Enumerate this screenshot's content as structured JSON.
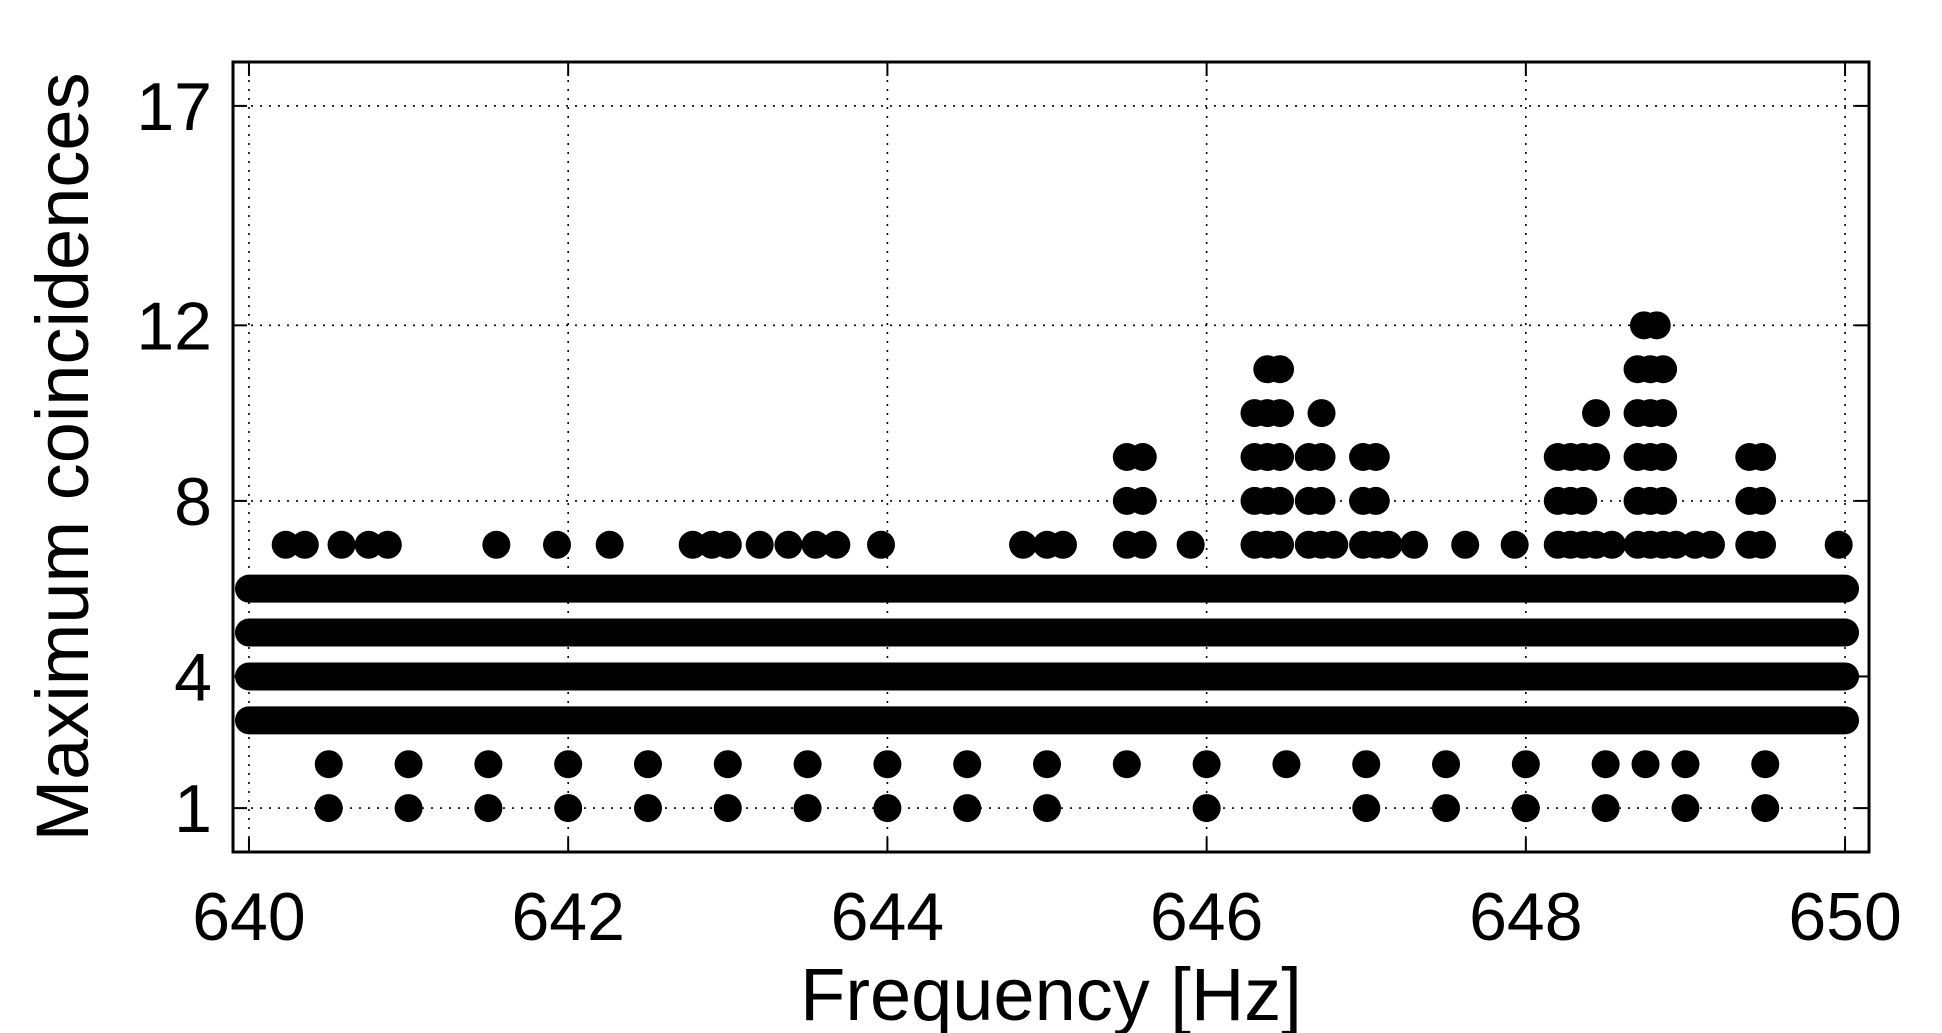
{
  "chart_data": {
    "type": "scatter",
    "title": "",
    "xlabel": "Frequency [Hz]",
    "ylabel": "Maximum coincidences",
    "xlim": [
      639.9,
      650.15
    ],
    "ylim": [
      0,
      18
    ],
    "x_ticks": [
      640,
      642,
      644,
      646,
      648,
      650
    ],
    "y_ticks": [
      1,
      4,
      8,
      12,
      17
    ],
    "grid": true,
    "marker_color": "#000000",
    "dense_bands": [
      {
        "y": 6,
        "x_from": 640.0,
        "x_to": 650.0
      },
      {
        "y": 5,
        "x_from": 640.0,
        "x_to": 650.0
      },
      {
        "y": 4,
        "x_from": 640.0,
        "x_to": 650.0
      },
      {
        "y": 3,
        "x_from": 640.0,
        "x_to": 650.0
      }
    ],
    "points": [
      {
        "x": 640.5,
        "y": 1
      },
      {
        "x": 641.0,
        "y": 1
      },
      {
        "x": 641.5,
        "y": 1
      },
      {
        "x": 642.0,
        "y": 1
      },
      {
        "x": 642.5,
        "y": 1
      },
      {
        "x": 643.0,
        "y": 1
      },
      {
        "x": 643.5,
        "y": 1
      },
      {
        "x": 644.0,
        "y": 1
      },
      {
        "x": 644.5,
        "y": 1
      },
      {
        "x": 645.0,
        "y": 1
      },
      {
        "x": 646.0,
        "y": 1
      },
      {
        "x": 647.0,
        "y": 1
      },
      {
        "x": 647.5,
        "y": 1
      },
      {
        "x": 648.0,
        "y": 1
      },
      {
        "x": 648.5,
        "y": 1
      },
      {
        "x": 649.0,
        "y": 1
      },
      {
        "x": 649.5,
        "y": 1
      },
      {
        "x": 640.5,
        "y": 2
      },
      {
        "x": 641.0,
        "y": 2
      },
      {
        "x": 641.5,
        "y": 2
      },
      {
        "x": 642.0,
        "y": 2
      },
      {
        "x": 642.5,
        "y": 2
      },
      {
        "x": 643.0,
        "y": 2
      },
      {
        "x": 643.5,
        "y": 2
      },
      {
        "x": 644.0,
        "y": 2
      },
      {
        "x": 644.5,
        "y": 2
      },
      {
        "x": 645.0,
        "y": 2
      },
      {
        "x": 645.5,
        "y": 2
      },
      {
        "x": 646.0,
        "y": 2
      },
      {
        "x": 646.5,
        "y": 2
      },
      {
        "x": 647.0,
        "y": 2
      },
      {
        "x": 647.5,
        "y": 2
      },
      {
        "x": 648.0,
        "y": 2
      },
      {
        "x": 648.5,
        "y": 2
      },
      {
        "x": 648.75,
        "y": 2
      },
      {
        "x": 649.0,
        "y": 2
      },
      {
        "x": 649.5,
        "y": 2
      },
      {
        "x": 640.23,
        "y": 7
      },
      {
        "x": 640.35,
        "y": 7
      },
      {
        "x": 640.58,
        "y": 7
      },
      {
        "x": 640.75,
        "y": 7
      },
      {
        "x": 640.87,
        "y": 7
      },
      {
        "x": 641.55,
        "y": 7
      },
      {
        "x": 641.93,
        "y": 7
      },
      {
        "x": 642.26,
        "y": 7
      },
      {
        "x": 642.78,
        "y": 7
      },
      {
        "x": 642.9,
        "y": 7
      },
      {
        "x": 643.0,
        "y": 7
      },
      {
        "x": 643.2,
        "y": 7
      },
      {
        "x": 643.38,
        "y": 7
      },
      {
        "x": 643.55,
        "y": 7
      },
      {
        "x": 643.68,
        "y": 7
      },
      {
        "x": 643.96,
        "y": 7
      },
      {
        "x": 644.85,
        "y": 7
      },
      {
        "x": 645.0,
        "y": 7
      },
      {
        "x": 645.1,
        "y": 7
      },
      {
        "x": 645.5,
        "y": 7
      },
      {
        "x": 645.6,
        "y": 7
      },
      {
        "x": 645.9,
        "y": 7
      },
      {
        "x": 646.3,
        "y": 7
      },
      {
        "x": 646.38,
        "y": 7
      },
      {
        "x": 646.46,
        "y": 7
      },
      {
        "x": 646.64,
        "y": 7
      },
      {
        "x": 646.72,
        "y": 7
      },
      {
        "x": 646.8,
        "y": 7
      },
      {
        "x": 646.98,
        "y": 7
      },
      {
        "x": 647.06,
        "y": 7
      },
      {
        "x": 647.14,
        "y": 7
      },
      {
        "x": 647.3,
        "y": 7
      },
      {
        "x": 647.62,
        "y": 7
      },
      {
        "x": 647.93,
        "y": 7
      },
      {
        "x": 648.2,
        "y": 7
      },
      {
        "x": 648.28,
        "y": 7
      },
      {
        "x": 648.36,
        "y": 7
      },
      {
        "x": 648.44,
        "y": 7
      },
      {
        "x": 648.54,
        "y": 7
      },
      {
        "x": 648.7,
        "y": 7
      },
      {
        "x": 648.78,
        "y": 7
      },
      {
        "x": 648.86,
        "y": 7
      },
      {
        "x": 648.94,
        "y": 7
      },
      {
        "x": 649.06,
        "y": 7
      },
      {
        "x": 649.16,
        "y": 7
      },
      {
        "x": 649.4,
        "y": 7
      },
      {
        "x": 649.48,
        "y": 7
      },
      {
        "x": 649.96,
        "y": 7
      },
      {
        "x": 645.5,
        "y": 8
      },
      {
        "x": 645.6,
        "y": 8
      },
      {
        "x": 646.3,
        "y": 8
      },
      {
        "x": 646.38,
        "y": 8
      },
      {
        "x": 646.46,
        "y": 8
      },
      {
        "x": 646.64,
        "y": 8
      },
      {
        "x": 646.72,
        "y": 8
      },
      {
        "x": 646.98,
        "y": 8
      },
      {
        "x": 647.06,
        "y": 8
      },
      {
        "x": 648.2,
        "y": 8
      },
      {
        "x": 648.28,
        "y": 8
      },
      {
        "x": 648.36,
        "y": 8
      },
      {
        "x": 648.7,
        "y": 8
      },
      {
        "x": 648.78,
        "y": 8
      },
      {
        "x": 648.86,
        "y": 8
      },
      {
        "x": 649.4,
        "y": 8
      },
      {
        "x": 649.48,
        "y": 8
      },
      {
        "x": 645.5,
        "y": 9
      },
      {
        "x": 645.6,
        "y": 9
      },
      {
        "x": 646.3,
        "y": 9
      },
      {
        "x": 646.38,
        "y": 9
      },
      {
        "x": 646.46,
        "y": 9
      },
      {
        "x": 646.64,
        "y": 9
      },
      {
        "x": 646.72,
        "y": 9
      },
      {
        "x": 646.98,
        "y": 9
      },
      {
        "x": 647.06,
        "y": 9
      },
      {
        "x": 648.2,
        "y": 9
      },
      {
        "x": 648.28,
        "y": 9
      },
      {
        "x": 648.36,
        "y": 9
      },
      {
        "x": 648.44,
        "y": 9
      },
      {
        "x": 648.7,
        "y": 9
      },
      {
        "x": 648.78,
        "y": 9
      },
      {
        "x": 648.86,
        "y": 9
      },
      {
        "x": 649.4,
        "y": 9
      },
      {
        "x": 649.48,
        "y": 9
      },
      {
        "x": 646.3,
        "y": 10
      },
      {
        "x": 646.38,
        "y": 10
      },
      {
        "x": 646.46,
        "y": 10
      },
      {
        "x": 646.72,
        "y": 10
      },
      {
        "x": 648.44,
        "y": 10
      },
      {
        "x": 648.7,
        "y": 10
      },
      {
        "x": 648.78,
        "y": 10
      },
      {
        "x": 648.86,
        "y": 10
      },
      {
        "x": 646.38,
        "y": 11
      },
      {
        "x": 646.46,
        "y": 11
      },
      {
        "x": 648.7,
        "y": 11
      },
      {
        "x": 648.78,
        "y": 11
      },
      {
        "x": 648.86,
        "y": 11
      },
      {
        "x": 648.74,
        "y": 12
      },
      {
        "x": 648.82,
        "y": 12
      }
    ]
  }
}
